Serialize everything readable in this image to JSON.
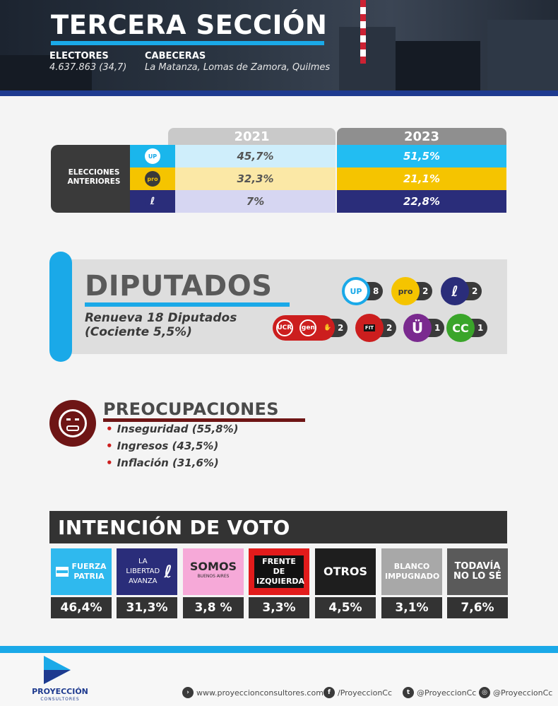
{
  "header": {
    "title": "TERCERA SECCIÓN",
    "electores_label": "ELECTORES",
    "electores_value": "4.637.863 (34,7)",
    "cabeceras_label": "CABECERAS",
    "cabeceras_value": "La Matanza, Lomas de Zamora, Quilmes"
  },
  "elecciones": {
    "label": "ELECCIONES ANTERIORES",
    "years": [
      "2021",
      "2023"
    ],
    "rows": [
      {
        "party_logo": "UP",
        "v2021": "45,7%",
        "v2023": "51,5%"
      },
      {
        "party_logo": "pro",
        "v2021": "32,3%",
        "v2023": "21,1%"
      },
      {
        "party_logo": "LLA",
        "v2021": "7%",
        "v2023": "22,8%"
      }
    ]
  },
  "diputados": {
    "title": "DIPUTADOS",
    "subtitle_line1": "Renueva 18 Diputados",
    "subtitle_line2": "(Cociente 5,5%)",
    "seats": [
      {
        "logo": "UP",
        "count": "8"
      },
      {
        "logo": "pro",
        "count": "2"
      },
      {
        "logo": "LLA",
        "count": "2"
      },
      {
        "logo": "UCR gen",
        "count": "2"
      },
      {
        "logo": "FIT",
        "count": "2"
      },
      {
        "logo": "Ü",
        "count": "1"
      },
      {
        "logo": "CC",
        "count": "1"
      }
    ]
  },
  "preocupaciones": {
    "title": "PREOCUPACIONES",
    "items": [
      "Inseguridad (55,8%)",
      "Ingresos (43,5%)",
      "Inflación (31,6%)"
    ]
  },
  "intencion": {
    "title": "INTENCIÓN DE VOTO",
    "candidates": [
      {
        "label": "FUERZA PATRIA",
        "pct": "46,4%"
      },
      {
        "label": "LA LIBERTAD AVANZA",
        "pct": "31,3%"
      },
      {
        "label": "SOMOS",
        "sublabel": "BUENOS AIRES",
        "pct": "3,8 %"
      },
      {
        "label": "FRENTE DE IZQUIERDA",
        "pct": "3,3%"
      },
      {
        "label": "OTROS",
        "pct": "4,5%"
      },
      {
        "label": "BLANCO IMPUGNADO",
        "pct": "3,1%"
      },
      {
        "label": "TODAVÍA NO LO SÉ",
        "pct": "7,6%"
      }
    ]
  },
  "footer": {
    "brand": "PROYECCIÓN",
    "brand_sub": "CONSULTORES",
    "website": "www.proyeccionconsultores.com.ar",
    "facebook": "/ProyeccionCc",
    "twitter": "@ProyeccionCc",
    "instagram": "@ProyeccionCc"
  },
  "colors": {
    "blue_light": "#1aa9e8",
    "navy": "#2a2d7a",
    "yellow": "#f5c400",
    "dark": "#333333",
    "maroon": "#6e1515"
  }
}
